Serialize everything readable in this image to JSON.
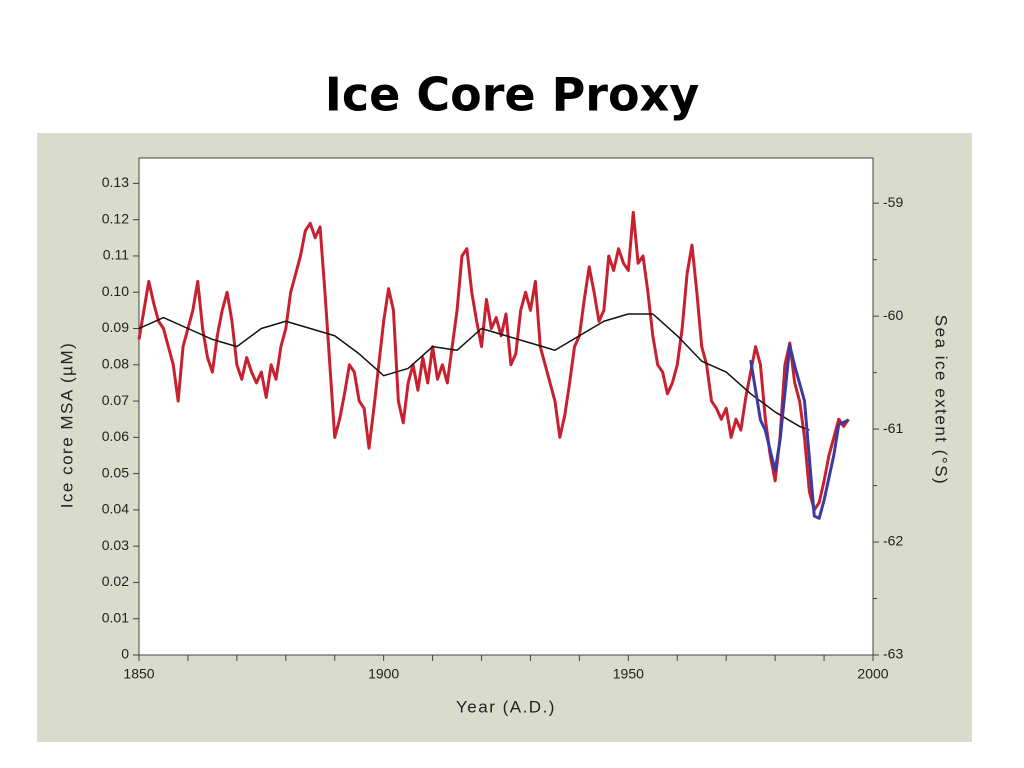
{
  "chart_data": {
    "type": "line",
    "title": "Ice Core Proxy",
    "xlabel": "Year (A.D.)",
    "ylabel": "Ice core MSA (µM)",
    "y2label": "Sea ice extent (°S)",
    "xlim": [
      1850,
      2000
    ],
    "xticks": [
      1850,
      1900,
      1950,
      2000
    ],
    "xminorticks": [
      1860,
      1870,
      1880,
      1890,
      1910,
      1920,
      1930,
      1940,
      1960,
      1970,
      1980,
      1990
    ],
    "ylim": [
      0,
      0.137
    ],
    "yticks": [
      0,
      0.01,
      0.02,
      0.03,
      0.04,
      0.05,
      0.06,
      0.07,
      0.08,
      0.09,
      {
        "value": 0.1,
        "label": "0.10"
      },
      0.11,
      0.12,
      0.13
    ],
    "y2lim": [
      -63,
      -58.6
    ],
    "y2ticks": [
      -63,
      -62,
      -61,
      -60,
      -59
    ],
    "y2minorticks": [
      -62.5,
      -61.5,
      -60.5,
      -59.5
    ],
    "series": [
      {
        "color": "#c8202f",
        "x": [
          1850,
          1851,
          1852,
          1853,
          1854,
          1855,
          1856,
          1857,
          1858,
          1859,
          1860,
          1861,
          1862,
          1863,
          1864,
          1865,
          1866,
          1867,
          1868,
          1869,
          1870,
          1871,
          1872,
          1873,
          1874,
          1875,
          1876,
          1877,
          1878,
          1879,
          1880,
          1881,
          1882,
          1883,
          1884,
          1885,
          1886,
          1887,
          1888,
          1889,
          1890,
          1891,
          1892,
          1893,
          1894,
          1895,
          1896,
          1897,
          1898,
          1899,
          1900,
          1901,
          1902,
          1903,
          1904,
          1905,
          1906,
          1907,
          1908,
          1909,
          1910,
          1911,
          1912,
          1913,
          1914,
          1915,
          1916,
          1917,
          1918,
          1919,
          1920,
          1921,
          1922,
          1923,
          1924,
          1925,
          1926,
          1927,
          1928,
          1929,
          1930,
          1931,
          1932,
          1933,
          1934,
          1935,
          1936,
          1937,
          1938,
          1939,
          1940,
          1941,
          1942,
          1943,
          1944,
          1945,
          1946,
          1947,
          1948,
          1949,
          1950,
          1951,
          1952,
          1953,
          1954,
          1955,
          1956,
          1957,
          1958,
          1959,
          1960,
          1961,
          1962,
          1963,
          1964,
          1965,
          1966,
          1967,
          1968,
          1969,
          1970,
          1971,
          1972,
          1973,
          1974,
          1975,
          1976,
          1977,
          1978,
          1979,
          1980,
          1981,
          1982,
          1983,
          1984,
          1985,
          1986,
          1987,
          1988,
          1989,
          1990,
          1991,
          1992,
          1993,
          1994,
          1995
        ],
        "values": [
          0.087,
          0.095,
          0.103,
          0.097,
          0.092,
          0.09,
          0.085,
          0.08,
          0.07,
          0.085,
          0.09,
          0.095,
          0.103,
          0.09,
          0.082,
          0.078,
          0.088,
          0.095,
          0.1,
          0.092,
          0.08,
          0.076,
          0.082,
          0.078,
          0.075,
          0.078,
          0.071,
          0.08,
          0.076,
          0.085,
          0.09,
          0.1,
          0.105,
          0.11,
          0.117,
          0.119,
          0.115,
          0.118,
          0.1,
          0.08,
          0.06,
          0.065,
          0.072,
          0.08,
          0.078,
          0.07,
          0.068,
          0.057,
          0.068,
          0.08,
          0.092,
          0.101,
          0.095,
          0.07,
          0.064,
          0.075,
          0.08,
          0.073,
          0.082,
          0.075,
          0.085,
          0.076,
          0.08,
          0.075,
          0.085,
          0.095,
          0.11,
          0.112,
          0.1,
          0.092,
          0.085,
          0.098,
          0.09,
          0.093,
          0.088,
          0.094,
          0.08,
          0.083,
          0.095,
          0.1,
          0.095,
          0.103,
          0.085,
          0.08,
          0.075,
          0.07,
          0.06,
          0.066,
          0.075,
          0.085,
          0.088,
          0.098,
          0.107,
          0.1,
          0.092,
          0.095,
          0.11,
          0.106,
          0.112,
          0.108,
          0.106,
          0.122,
          0.108,
          0.11,
          0.1,
          0.088,
          0.08,
          0.078,
          0.072,
          0.075,
          0.08,
          0.09,
          0.105,
          0.113,
          0.1,
          0.085,
          0.08,
          0.07,
          0.068,
          0.065,
          0.068,
          0.06,
          0.065,
          0.062,
          0.071,
          0.078,
          0.085,
          0.08,
          0.065,
          0.055,
          0.048,
          0.06,
          0.08,
          0.086,
          0.075,
          0.07,
          0.06,
          0.045,
          0.04,
          0.042,
          0.048,
          0.055,
          0.06,
          0.065,
          0.063,
          0.065
        ]
      },
      {
        "color": "#111111",
        "x": [
          1850,
          1855,
          1860,
          1865,
          1870,
          1875,
          1880,
          1885,
          1890,
          1895,
          1900,
          1905,
          1910,
          1915,
          1920,
          1925,
          1930,
          1935,
          1940,
          1945,
          1950,
          1955,
          1960,
          1965,
          1970,
          1975,
          1980,
          1985,
          1987
        ],
        "values": [
          0.09,
          0.093,
          0.09,
          0.087,
          0.085,
          0.09,
          0.092,
          0.09,
          0.088,
          0.083,
          0.077,
          0.079,
          0.085,
          0.084,
          0.09,
          0.088,
          0.086,
          0.084,
          0.088,
          0.092,
          0.094,
          0.094,
          0.088,
          0.081,
          0.078,
          0.072,
          0.067,
          0.063,
          0.062
        ]
      },
      {
        "color": "#3a3aa0",
        "axis": "y2",
        "x": [
          1975,
          1977,
          1978,
          1980,
          1981,
          1983,
          1984,
          1986,
          1988,
          1989,
          1990,
          1992,
          1993,
          1995
        ],
        "values": [
          -60.39,
          -60.92,
          -61.01,
          -61.37,
          -61.1,
          -60.26,
          -60.44,
          -60.75,
          -61.77,
          -61.79,
          -61.63,
          -61.23,
          -60.96,
          -60.92
        ]
      }
    ]
  }
}
